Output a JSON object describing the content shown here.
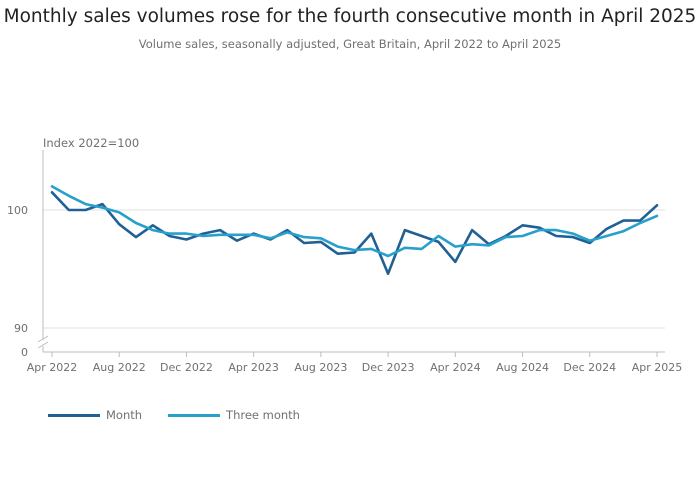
{
  "header": {
    "title": "Monthly sales volumes rose for the fourth consecutive month in April 2025",
    "subtitle": "Volume sales, seasonally adjusted, Great Britain, April 2022 to April 2025"
  },
  "colors": {
    "month": "#206095",
    "three_month": "#27a0cc",
    "grid": "#e0e0e0",
    "axis": "#bcbcbd"
  },
  "chart_data": {
    "type": "line",
    "ylabel": "Index 2022=100",
    "y_ticks": [
      0,
      90,
      100
    ],
    "y_axis_break": [
      0,
      90
    ],
    "ylim": [
      89,
      104
    ],
    "x_tick_labels": [
      "Apr 2022",
      "Aug 2022",
      "Dec 2022",
      "Apr 2023",
      "Aug 2023",
      "Dec 2023",
      "Apr 2024",
      "Aug 2024",
      "Dec 2024",
      "Apr 2025"
    ],
    "x": [
      "Apr 2022",
      "May 2022",
      "Jun 2022",
      "Jul 2022",
      "Aug 2022",
      "Sep 2022",
      "Oct 2022",
      "Nov 2022",
      "Dec 2022",
      "Jan 2023",
      "Feb 2023",
      "Mar 2023",
      "Apr 2023",
      "May 2023",
      "Jun 2023",
      "Jul 2023",
      "Aug 2023",
      "Sep 2023",
      "Oct 2023",
      "Nov 2023",
      "Dec 2023",
      "Jan 2024",
      "Feb 2024",
      "Mar 2024",
      "Apr 2024",
      "May 2024",
      "Jun 2024",
      "Jul 2024",
      "Aug 2024",
      "Sep 2024",
      "Oct 2024",
      "Nov 2024",
      "Dec 2024",
      "Jan 2025",
      "Feb 2025",
      "Mar 2025",
      "Apr 2025"
    ],
    "series": [
      {
        "name": "Month",
        "values": [
          101.5,
          100.0,
          100.0,
          100.5,
          98.8,
          97.7,
          98.7,
          97.8,
          97.5,
          98.0,
          98.3,
          97.4,
          98.0,
          97.5,
          98.3,
          97.2,
          97.3,
          96.3,
          96.4,
          98.0,
          94.6,
          98.3,
          97.8,
          97.3,
          95.6,
          98.3,
          97.1,
          97.8,
          98.7,
          98.5,
          97.8,
          97.7,
          97.2,
          98.4,
          99.1,
          99.1,
          100.4
        ]
      },
      {
        "name": "Three month",
        "values": [
          102.0,
          101.2,
          100.5,
          100.2,
          99.8,
          98.9,
          98.3,
          98.0,
          98.0,
          97.8,
          97.9,
          97.9,
          97.9,
          97.6,
          98.1,
          97.7,
          97.6,
          96.9,
          96.6,
          96.7,
          96.1,
          96.8,
          96.7,
          97.8,
          96.9,
          97.1,
          97.0,
          97.7,
          97.8,
          98.3,
          98.3,
          98.0,
          97.4,
          97.8,
          98.2,
          98.9,
          99.5
        ]
      }
    ]
  }
}
